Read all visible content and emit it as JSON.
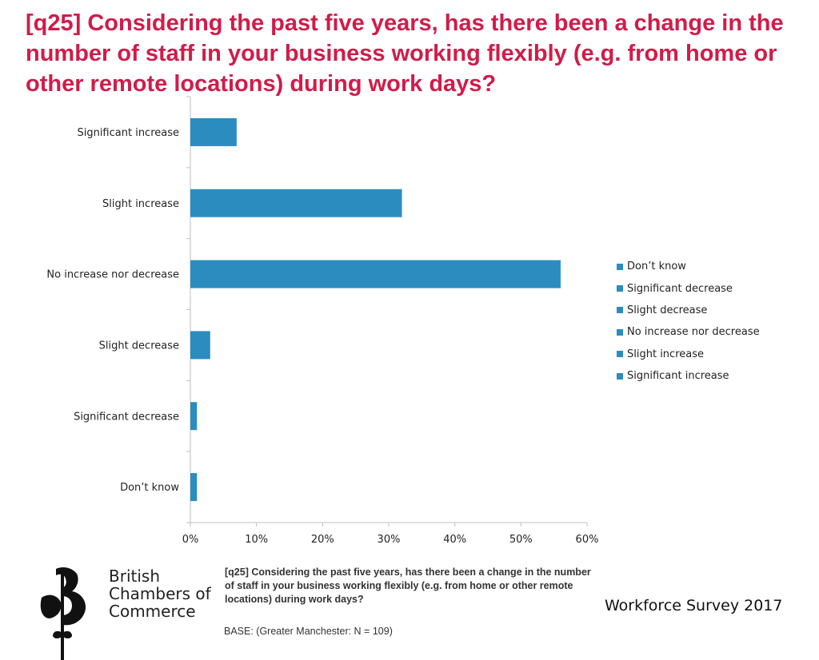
{
  "slide": {
    "title": "[q25] Considering the past five years, has there been a change in the number of staff in your business working flexibly (e.g. from home or other remote locations) during work days?",
    "footnote": "[q25] Considering the past five years, has there been a change in the number of staff in your business working flexibly (e.g. from home or other remote locations) during work days?",
    "base": "BASE: (Greater Manchester: N = 109)",
    "survey_label": "Workforce Survey 2017",
    "logo": {
      "lines": [
        "British",
        "Chambers of",
        "Commerce"
      ],
      "icon": "bcc-flower-logo"
    }
  },
  "chart_data": {
    "type": "bar",
    "orientation": "horizontal",
    "title": "",
    "xlabel": "",
    "ylabel": "",
    "categories": [
      "Significant increase",
      "Slight increase",
      "No increase nor decrease",
      "Slight decrease",
      "Significant decrease",
      "Don’t know"
    ],
    "values": [
      7,
      32,
      56,
      3,
      1,
      1
    ],
    "xlim": [
      0,
      60
    ],
    "xticks": [
      "0%",
      "10%",
      "20%",
      "30%",
      "40%",
      "50%",
      "60%"
    ],
    "grid": false,
    "legend_position": "right",
    "legend": [
      "Don’t know",
      "Significant decrease",
      "Slight decrease",
      "No increase nor decrease",
      "Slight increase",
      "Significant increase"
    ],
    "colors": {
      "bar": "#2b8cbf",
      "axis": "#bfbfbf"
    }
  }
}
